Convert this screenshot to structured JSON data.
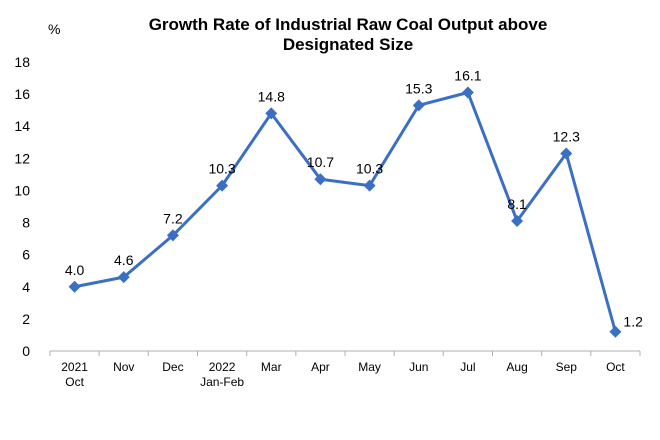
{
  "chart_data": {
    "type": "line",
    "title_lines": [
      "Growth Rate of Industrial Raw Coal Output above",
      "Designated Size"
    ],
    "unit": "%",
    "xlabel": "",
    "ylabel": "",
    "ylim": [
      0,
      18
    ],
    "yticks": [
      "0",
      "2",
      "4",
      "6",
      "8",
      "10",
      "12",
      "14",
      "16",
      "18"
    ],
    "grid": false,
    "legend": "none",
    "line_color": "#3a6fc4",
    "marker_color": "#3a6fc4",
    "categories": [
      [
        "2021",
        "Oct"
      ],
      [
        "Nov"
      ],
      [
        "Dec"
      ],
      [
        "2022",
        "Jan-Feb"
      ],
      [
        "Mar"
      ],
      [
        "Apr"
      ],
      [
        "May"
      ],
      [
        "Jun"
      ],
      [
        "Jul"
      ],
      [
        "Aug"
      ],
      [
        "Sep"
      ],
      [
        "Oct"
      ]
    ],
    "values": [
      4.0,
      4.6,
      7.2,
      10.3,
      14.8,
      10.7,
      10.3,
      15.3,
      16.1,
      8.1,
      12.3,
      1.2
    ],
    "value_labels": [
      "4.0",
      "4.6",
      "7.2",
      "10.3",
      "14.8",
      "10.7",
      "10.3",
      "15.3",
      "16.1",
      "8.1",
      "12.3",
      "1.2"
    ]
  }
}
